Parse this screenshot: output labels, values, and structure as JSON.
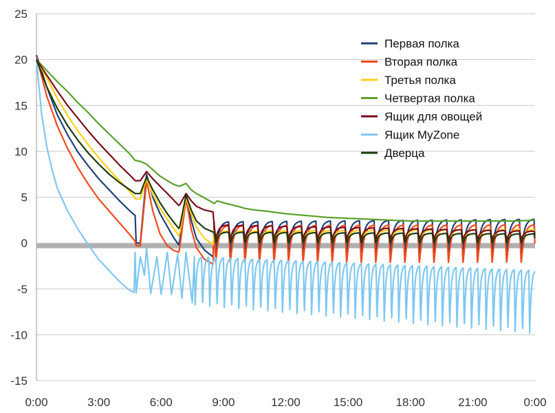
{
  "chart_data": {
    "type": "line",
    "title": "",
    "xlabel": "",
    "ylabel": "",
    "xlim": [
      0,
      24
    ],
    "ylim": [
      -15,
      25
    ],
    "y_ticks": [
      25,
      20,
      15,
      10,
      5,
      0,
      -5,
      -10,
      -15
    ],
    "y_tick_labels": [
      "25",
      "20",
      "15",
      "10",
      "5",
      "0",
      "-5",
      "-10",
      "-15"
    ],
    "x_ticks": [
      0,
      3,
      6,
      9,
      12,
      15,
      18,
      21,
      24
    ],
    "x_tick_labels": [
      "0:00",
      "3:00",
      "6:00",
      "9:00",
      "12:00",
      "15:00",
      "18:00",
      "21:00",
      "0:00"
    ],
    "grid": "horizontal",
    "zero_reference_line": {
      "y": -0.3,
      "color": "#b0b0b0"
    },
    "legend_position": "top-right",
    "series": [
      {
        "name": "Первая полка",
        "color": "#1f3f7a",
        "x": [
          0,
          0.5,
          1.0,
          1.5,
          2.0,
          2.5,
          3.0,
          3.5,
          4.0,
          4.5,
          4.75,
          4.8,
          5.0,
          5.3,
          5.6,
          5.95,
          6.3,
          6.6,
          6.85,
          6.9,
          7.2,
          7.45,
          7.7,
          8.1,
          8.5,
          8.55,
          8.7,
          9.0,
          9.7,
          10.0,
          10.5,
          11.0,
          12.0,
          13.0,
          14.0,
          15.0,
          16.0,
          17.0,
          18.0,
          19.0,
          20.0,
          21.0,
          22.0,
          23.0,
          24.0
        ],
        "y": [
          20.5,
          17.0,
          14.0,
          11.8,
          9.9,
          8.4,
          7.0,
          5.8,
          4.6,
          3.5,
          3.0,
          0.0,
          0.0,
          7.5,
          5.0,
          3.2,
          1.8,
          0.6,
          -0.2,
          0.3,
          5.3,
          2.5,
          0.5,
          -0.8,
          -1.5,
          1.2,
          3.0,
          4.0,
          3.3,
          2.8,
          2.5,
          2.4,
          2.3,
          2.3,
          2.3,
          2.3,
          2.2,
          2.2,
          2.2,
          2.2,
          2.2,
          2.2,
          2.2,
          2.3,
          2.5
        ],
        "cycle": {
          "start": 8.55,
          "period": 0.7,
          "min": -1.2,
          "peak": 2.3,
          "peak_tail": 2.6
        }
      },
      {
        "name": "Вторая полка",
        "color": "#f04a1a",
        "x": [
          0,
          0.5,
          1.0,
          1.5,
          2.0,
          2.5,
          3.0,
          3.5,
          4.0,
          4.5,
          4.75,
          4.8,
          5.0,
          5.3,
          5.6,
          5.95,
          6.3,
          6.6,
          6.85,
          6.9,
          7.2,
          7.45,
          7.7,
          8.1,
          8.5,
          8.55,
          8.7,
          9.0,
          9.7,
          10.0,
          10.5,
          11.0,
          12.0,
          13.0,
          14.0,
          15.0,
          16.0,
          17.0,
          18.0,
          19.0,
          20.0,
          21.0,
          22.0,
          23.0,
          24.0
        ],
        "y": [
          20.3,
          16.0,
          12.8,
          10.3,
          8.2,
          6.4,
          4.8,
          3.5,
          2.2,
          0.9,
          0.2,
          -0.3,
          -0.3,
          6.8,
          3.5,
          1.0,
          -0.3,
          -0.8,
          -1.0,
          -0.5,
          4.8,
          1.5,
          -0.5,
          -1.8,
          -2.3,
          0.5,
          2.2,
          3.6,
          3.0,
          2.5,
          2.2,
          2.0,
          2.0,
          2.0,
          2.0,
          2.0,
          1.9,
          1.9,
          1.9,
          1.9,
          1.9,
          1.9,
          1.9,
          2.0,
          2.2
        ],
        "cycle": {
          "start": 8.55,
          "period": 0.7,
          "min": -2.3,
          "peak": 1.9,
          "peak_tail": 2.0
        }
      },
      {
        "name": "Третья полка",
        "color": "#ffd11a",
        "x": [
          0,
          0.5,
          1.0,
          1.5,
          2.0,
          2.5,
          3.0,
          3.5,
          4.0,
          4.5,
          4.75,
          4.8,
          5.0,
          5.3,
          5.6,
          5.95,
          6.3,
          6.6,
          6.85,
          6.9,
          7.2,
          7.45,
          7.7,
          8.1,
          8.5,
          8.55,
          8.7,
          9.0,
          9.7,
          10.0,
          10.5,
          11.0,
          12.0,
          13.0,
          14.0,
          15.0,
          16.0,
          17.0,
          18.0,
          19.0,
          20.0,
          21.0,
          22.0,
          23.0,
          24.0
        ],
        "y": [
          20.0,
          18.0,
          15.8,
          13.9,
          12.2,
          10.7,
          9.3,
          8.0,
          6.8,
          5.6,
          4.9,
          4.8,
          4.8,
          7.0,
          5.3,
          3.8,
          2.6,
          1.6,
          0.8,
          1.1,
          5.0,
          3.2,
          1.7,
          0.5,
          -0.2,
          1.8,
          3.2,
          3.5,
          3.0,
          2.6,
          2.3,
          2.1,
          1.8,
          1.6,
          1.5,
          1.4,
          1.3,
          1.3,
          1.3,
          1.3,
          1.3,
          1.3,
          1.3,
          1.3,
          1.5
        ],
        "cycle": {
          "start": 8.55,
          "period": 0.7,
          "min": 0.0,
          "peak": 1.3,
          "peak_tail": 1.5
        }
      },
      {
        "name": "Четвертая полка",
        "color": "#5aa02c",
        "x": [
          0,
          0.5,
          1.0,
          1.5,
          2.0,
          2.5,
          3.0,
          3.5,
          4.0,
          4.5,
          4.75,
          4.8,
          5.0,
          5.3,
          5.6,
          5.95,
          6.3,
          6.6,
          6.85,
          6.9,
          7.2,
          7.45,
          7.7,
          8.1,
          8.5,
          8.55,
          8.7,
          9.0,
          9.7,
          10.0,
          10.5,
          11.0,
          12.0,
          13.0,
          14.0,
          15.0,
          16.0,
          17.0,
          18.0,
          19.0,
          20.0,
          21.0,
          22.0,
          23.0,
          24.0
        ],
        "y": [
          20.0,
          18.8,
          17.6,
          16.5,
          15.3,
          14.2,
          13.0,
          11.9,
          10.8,
          9.7,
          9.0,
          9.0,
          8.9,
          8.6,
          8.0,
          7.3,
          6.8,
          6.4,
          6.2,
          6.2,
          6.5,
          5.8,
          5.4,
          4.9,
          4.4,
          4.3,
          4.6,
          4.4,
          4.0,
          3.8,
          3.6,
          3.5,
          3.2,
          3.0,
          2.8,
          2.7,
          2.6,
          2.5,
          2.4,
          2.4,
          2.4,
          2.4,
          2.4,
          2.4,
          2.5
        ],
        "cycle": null
      },
      {
        "name": "Ящик для овощей",
        "color": "#7a0a1a",
        "x": [
          0,
          0.5,
          1.0,
          1.5,
          2.0,
          2.5,
          3.0,
          3.5,
          4.0,
          4.5,
          4.75,
          4.8,
          5.0,
          5.3,
          5.6,
          5.95,
          6.3,
          6.6,
          6.85,
          6.9,
          7.2,
          7.45,
          7.7,
          8.1,
          8.5,
          8.55,
          8.7,
          9.0,
          9.7,
          10.0,
          10.5,
          11.0,
          12.0,
          13.0,
          14.0,
          15.0,
          16.0,
          17.0,
          18.0,
          19.0,
          20.0,
          21.0,
          22.0,
          23.0,
          24.0
        ],
        "y": [
          20.0,
          18.3,
          16.6,
          15.0,
          13.6,
          12.2,
          10.9,
          9.7,
          8.5,
          7.4,
          6.8,
          6.8,
          6.8,
          7.8,
          7.0,
          6.2,
          5.4,
          4.7,
          4.1,
          4.2,
          5.4,
          4.6,
          4.0,
          3.6,
          3.4,
          3.4,
          4.0,
          4.2,
          3.8,
          3.5,
          3.2,
          3.0,
          2.7,
          2.4,
          2.2,
          2.0,
          1.8,
          1.7,
          1.6,
          1.5,
          1.4,
          1.3,
          1.2,
          1.2,
          1.2
        ],
        "cycle": {
          "start": 8.55,
          "period": 0.7,
          "min": 0.4,
          "peak": 2.0,
          "peak_tail": 1.3
        }
      },
      {
        "name": "Ящик MyZone",
        "color": "#7fc8f0",
        "x": [
          0,
          0.25,
          0.5,
          0.75,
          1.0,
          1.5,
          2.0,
          2.5,
          3.0,
          3.5,
          4.0,
          4.4,
          4.7,
          4.75,
          4.8,
          5.0,
          5.2,
          5.3,
          5.5,
          5.8,
          6.0,
          6.3,
          6.5,
          6.8,
          7.0,
          7.2,
          7.5,
          24.0
        ],
        "y": [
          20.0,
          14.0,
          10.5,
          8.0,
          6.0,
          3.5,
          1.5,
          -0.2,
          -1.8,
          -3.0,
          -4.2,
          -5.0,
          -5.4,
          -1.0,
          -5.4,
          -1.5,
          -3.5,
          -0.5,
          -5.5,
          -1.5,
          -5.6,
          -1.0,
          -5.6,
          -1.2,
          -6.0,
          -1.0,
          -6.5,
          -4.5
        ],
        "cycle": {
          "start": 7.6,
          "period": 0.35,
          "min": -7.0,
          "min_tail": -10.2,
          "peak": -1.5,
          "peak_tail": -3.0
        }
      },
      {
        "name": "Дверца",
        "color": "#1e3a0c",
        "x": [
          0,
          0.5,
          1.0,
          1.5,
          2.0,
          2.5,
          3.0,
          3.5,
          4.0,
          4.5,
          4.75,
          4.8,
          5.0,
          5.3,
          5.6,
          5.95,
          6.3,
          6.6,
          6.85,
          6.9,
          7.2,
          7.45,
          7.7,
          8.1,
          8.5,
          8.55,
          8.7,
          9.0,
          9.7,
          10.0,
          10.5,
          11.0,
          12.0,
          13.0,
          14.0,
          15.0,
          16.0,
          17.0,
          18.0,
          19.0,
          20.0,
          21.0,
          22.0,
          23.0,
          24.0
        ],
        "y": [
          20.0,
          17.0,
          14.7,
          12.8,
          11.2,
          9.8,
          8.6,
          7.5,
          6.6,
          5.8,
          5.4,
          5.4,
          5.4,
          7.2,
          5.8,
          4.4,
          3.2,
          2.3,
          1.6,
          1.8,
          5.2,
          3.6,
          2.4,
          1.6,
          1.2,
          2.2,
          3.5,
          3.3,
          2.7,
          2.2,
          1.9,
          1.6,
          1.3,
          1.1,
          1.0,
          0.9,
          0.8,
          0.8,
          0.8,
          0.8,
          0.8,
          0.8,
          0.8,
          0.8,
          1.0
        ],
        "cycle": {
          "start": 8.55,
          "period": 0.7,
          "min": 0.0,
          "peak": 1.2,
          "peak_tail": 1.0
        }
      }
    ]
  }
}
